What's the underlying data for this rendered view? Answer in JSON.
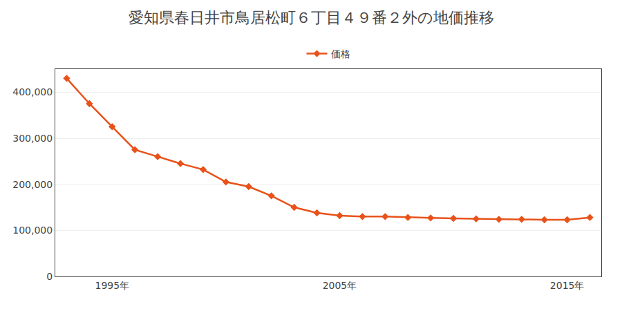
{
  "chart_data": {
    "type": "line",
    "title": "愛知県春日井市鳥居松町６丁目４９番２外の地価推移",
    "x": [
      1993,
      1994,
      1995,
      1996,
      1997,
      1998,
      1999,
      2000,
      2001,
      2002,
      2003,
      2004,
      2005,
      2006,
      2007,
      2008,
      2009,
      2010,
      2011,
      2012,
      2013,
      2014,
      2015,
      2016
    ],
    "series": [
      {
        "name": "価格",
        "color": "#e8521a",
        "marker": "diamond",
        "values": [
          430000,
          375000,
          325000,
          275000,
          260000,
          245000,
          232000,
          205000,
          195000,
          175000,
          150000,
          138000,
          132000,
          130000,
          130000,
          128000,
          127000,
          126000,
          125000,
          124000,
          124000,
          123000,
          123000,
          128000
        ]
      }
    ],
    "xlim": [
      1992.5,
      2016.5
    ],
    "xticks": [
      {
        "value": 1995,
        "label": "1995年"
      },
      {
        "value": 2005,
        "label": "2005年"
      },
      {
        "value": 2015,
        "label": "2015年"
      }
    ],
    "ylim": [
      0,
      450000
    ],
    "yticks": [
      0,
      {
        "value": 100000,
        "label": "100,000"
      },
      {
        "value": 200000,
        "label": "200,000"
      },
      {
        "value": 300000,
        "label": "300,000"
      },
      {
        "value": 400000,
        "label": "400,000"
      }
    ],
    "grid": "y",
    "legend": "top"
  }
}
